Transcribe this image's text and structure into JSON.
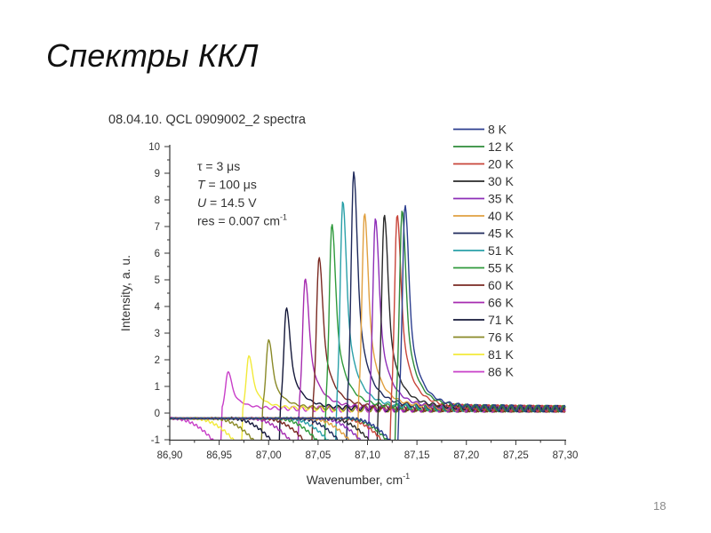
{
  "slide": {
    "title": "Спектры ККЛ",
    "page_number": "18"
  },
  "chart_data": {
    "type": "line",
    "title": "08.04.10. QCL 0909002_2 spectra",
    "xlabel": "Wavenumber, cm",
    "xlabel_superscript": "-1",
    "ylabel": "Intensity, a. u.",
    "xlim": [
      86.9,
      87.3
    ],
    "ylim": [
      -1,
      10
    ],
    "x_ticks": [
      86.9,
      86.95,
      87.0,
      87.05,
      87.1,
      87.15,
      87.2,
      87.25,
      87.3
    ],
    "x_tick_labels": [
      "86,90",
      "86,95",
      "87,00",
      "87,05",
      "87,10",
      "87,15",
      "87,20",
      "87,25",
      "87,30"
    ],
    "y_ticks": [
      -1,
      0,
      1,
      2,
      3,
      4,
      5,
      6,
      7,
      8,
      9,
      10
    ],
    "y_tick_labels": [
      "-1",
      "0",
      "1",
      "2",
      "3",
      "4",
      "5",
      "6",
      "7",
      "8",
      "9",
      "10"
    ],
    "grid": false,
    "legend_position": "right",
    "annotations": [
      {
        "sym": "τ",
        "text": " = 3 μs",
        "italic": false
      },
      {
        "sym": "T",
        "text": " = 100 μs",
        "italic": true
      },
      {
        "sym": "U",
        "text": " = 14.5 V",
        "italic": true
      },
      {
        "sym": "res",
        "text": " = 0.007 cm",
        "sup": "-1",
        "italic": false
      }
    ],
    "series": [
      {
        "name": "8 K",
        "color": "#2c3e8f",
        "peak_x": 87.138,
        "peak_y": 7.65
      },
      {
        "name": "12 K",
        "color": "#2e8b3a",
        "peak_x": 87.135,
        "peak_y": 7.45
      },
      {
        "name": "20 K",
        "color": "#c8453a",
        "peak_x": 87.13,
        "peak_y": 7.3
      },
      {
        "name": "30 K",
        "color": "#2a2a2a",
        "peak_x": 87.117,
        "peak_y": 7.3
      },
      {
        "name": "35 K",
        "color": "#8e2fb8",
        "peak_x": 87.108,
        "peak_y": 7.15
      },
      {
        "name": "40 K",
        "color": "#e0a040",
        "peak_x": 87.097,
        "peak_y": 7.35
      },
      {
        "name": "45 K",
        "color": "#1f2a5c",
        "peak_x": 87.086,
        "peak_y": 8.9
      },
      {
        "name": "51 K",
        "color": "#2aa0a8",
        "peak_x": 87.075,
        "peak_y": 7.8
      },
      {
        "name": "55 K",
        "color": "#2f9a3c",
        "peak_x": 87.064,
        "peak_y": 6.95
      },
      {
        "name": "60 K",
        "color": "#7a2a22",
        "peak_x": 87.051,
        "peak_y": 5.7
      },
      {
        "name": "66 K",
        "color": "#a62cb0",
        "peak_x": 87.037,
        "peak_y": 4.9
      },
      {
        "name": "71 K",
        "color": "#14183a",
        "peak_x": 87.018,
        "peak_y": 3.8
      },
      {
        "name": "76 K",
        "color": "#8a8a28",
        "peak_x": 87.0,
        "peak_y": 2.6
      },
      {
        "name": "81 K",
        "color": "#f2ea3a",
        "peak_x": 86.98,
        "peak_y": 2.0
      },
      {
        "name": "86 K",
        "color": "#c83ec8",
        "peak_x": 86.959,
        "peak_y": 1.4
      }
    ]
  }
}
